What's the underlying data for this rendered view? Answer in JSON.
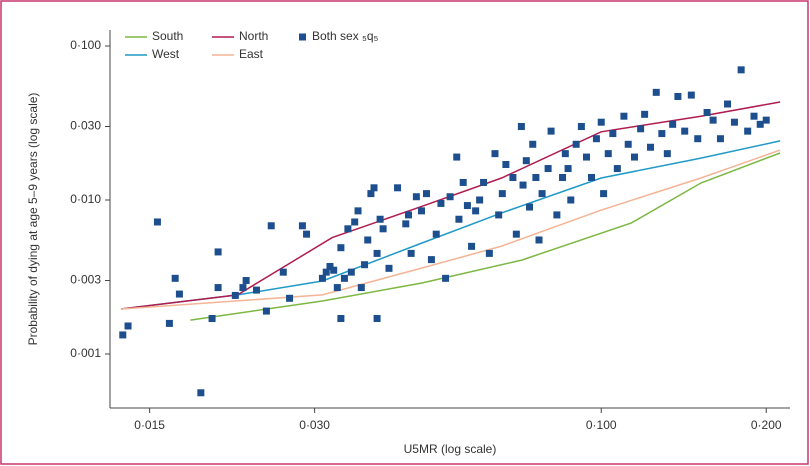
{
  "chart_data": {
    "type": "scatter",
    "x_label": "U5MR (log scale)",
    "y_label": "Probability of dying at age 5–9 years (log scale)",
    "log_x": true,
    "log_y": true,
    "grid": false,
    "legend": "top-left",
    "xlim": [
      0.0127,
      0.221
    ],
    "ylim": [
      0.000446,
      0.127
    ],
    "xticks": [
      {
        "value": 0.015,
        "label": "0·015"
      },
      {
        "value": 0.03,
        "label": "0·030"
      },
      {
        "value": 0.1,
        "label": "0·100"
      },
      {
        "value": 0.2,
        "label": "0·200"
      }
    ],
    "yticks": [
      {
        "value": 0.001,
        "label": "0·001"
      },
      {
        "value": 0.003,
        "label": "0·003"
      },
      {
        "value": 0.01,
        "label": "0·010"
      },
      {
        "value": 0.03,
        "label": "0·030"
      },
      {
        "value": 0.1,
        "label": "0·100"
      }
    ],
    "series": [
      {
        "name": "South",
        "color": "#7cb742",
        "marker": "line",
        "x": [
          0.0178,
          0.031,
          0.0471,
          0.0716,
          0.1135,
          0.152,
          0.212
        ],
        "y": [
          0.00166,
          0.00221,
          0.00289,
          0.00407,
          0.0071,
          0.0129,
          0.0202
        ]
      },
      {
        "name": "West",
        "color": "#1f9ac6",
        "marker": "line",
        "x": [
          0.0133,
          0.0217,
          0.031,
          0.0471,
          0.0658,
          0.1,
          0.152,
          0.212
        ],
        "y": [
          0.00196,
          0.00242,
          0.00298,
          0.00526,
          0.00824,
          0.0139,
          0.0187,
          0.0242
        ]
      },
      {
        "name": "North",
        "color": "#b01c4e",
        "marker": "line",
        "x": [
          0.0133,
          0.0217,
          0.0323,
          0.0471,
          0.0658,
          0.1,
          0.152,
          0.212
        ],
        "y": [
          0.00196,
          0.00242,
          0.0057,
          0.0091,
          0.0139,
          0.0277,
          0.035,
          0.0433
        ]
      },
      {
        "name": "East",
        "color": "#f4b496",
        "marker": "line",
        "x": [
          0.0133,
          0.031,
          0.0471,
          0.0658,
          0.1,
          0.152,
          0.212
        ],
        "y": [
          0.00196,
          0.00242,
          0.00362,
          0.00502,
          0.0086,
          0.0139,
          0.0211
        ]
      },
      {
        "name": "Both sex ₅q₅",
        "color": "#1d4f8e",
        "marker": "square",
        "x": [
          0.0134,
          0.0137,
          0.0155,
          0.0163,
          0.0167,
          0.017,
          0.0186,
          0.0195,
          0.02,
          0.02,
          0.0215,
          0.0222,
          0.0225,
          0.0235,
          0.0245,
          0.025,
          0.0263,
          0.027,
          0.0285,
          0.029,
          0.031,
          0.0315,
          0.032,
          0.0325,
          0.033,
          0.0335,
          0.0335,
          0.034,
          0.0345,
          0.035,
          0.0355,
          0.036,
          0.0365,
          0.037,
          0.0375,
          0.038,
          0.0385,
          0.039,
          0.039,
          0.0395,
          0.04,
          0.041,
          0.0425,
          0.044,
          0.0445,
          0.045,
          0.046,
          0.047,
          0.048,
          0.049,
          0.05,
          0.051,
          0.052,
          0.053,
          0.0545,
          0.055,
          0.056,
          0.057,
          0.058,
          0.059,
          0.06,
          0.061,
          0.0625,
          0.064,
          0.065,
          0.066,
          0.067,
          0.069,
          0.07,
          0.0715,
          0.072,
          0.073,
          0.074,
          0.075,
          0.076,
          0.077,
          0.078,
          0.08,
          0.081,
          0.083,
          0.085,
          0.086,
          0.087,
          0.088,
          0.09,
          0.092,
          0.094,
          0.096,
          0.098,
          0.1,
          0.101,
          0.103,
          0.105,
          0.107,
          0.11,
          0.112,
          0.115,
          0.118,
          0.12,
          0.123,
          0.126,
          0.129,
          0.132,
          0.135,
          0.138,
          0.142,
          0.146,
          0.15,
          0.156,
          0.16,
          0.165,
          0.17,
          0.175,
          0.18,
          0.185,
          0.19,
          0.195,
          0.2
        ],
        "y": [
          0.00133,
          0.00152,
          0.0072,
          0.00158,
          0.0031,
          0.00245,
          0.00056,
          0.0017,
          0.0027,
          0.0046,
          0.0024,
          0.0027,
          0.003,
          0.0026,
          0.0019,
          0.0068,
          0.0034,
          0.0023,
          0.0068,
          0.006,
          0.0031,
          0.0034,
          0.0037,
          0.0035,
          0.0027,
          0.0017,
          0.0049,
          0.0031,
          0.0065,
          0.0034,
          0.0072,
          0.0085,
          0.0027,
          0.0038,
          0.0055,
          0.011,
          0.012,
          0.0045,
          0.0017,
          0.0075,
          0.0065,
          0.0036,
          0.012,
          0.007,
          0.008,
          0.0045,
          0.0105,
          0.0085,
          0.011,
          0.0041,
          0.006,
          0.0095,
          0.0031,
          0.0105,
          0.019,
          0.0075,
          0.013,
          0.0092,
          0.005,
          0.0085,
          0.01,
          0.013,
          0.0045,
          0.02,
          0.008,
          0.011,
          0.017,
          0.014,
          0.006,
          0.03,
          0.0125,
          0.018,
          0.009,
          0.023,
          0.014,
          0.0055,
          0.011,
          0.016,
          0.028,
          0.008,
          0.014,
          0.02,
          0.016,
          0.01,
          0.023,
          0.03,
          0.019,
          0.014,
          0.025,
          0.032,
          0.011,
          0.02,
          0.027,
          0.016,
          0.035,
          0.023,
          0.019,
          0.029,
          0.036,
          0.022,
          0.05,
          0.027,
          0.02,
          0.031,
          0.047,
          0.028,
          0.048,
          0.025,
          0.037,
          0.033,
          0.025,
          0.042,
          0.032,
          0.07,
          0.028,
          0.035,
          0.031,
          0.033
        ]
      }
    ]
  }
}
